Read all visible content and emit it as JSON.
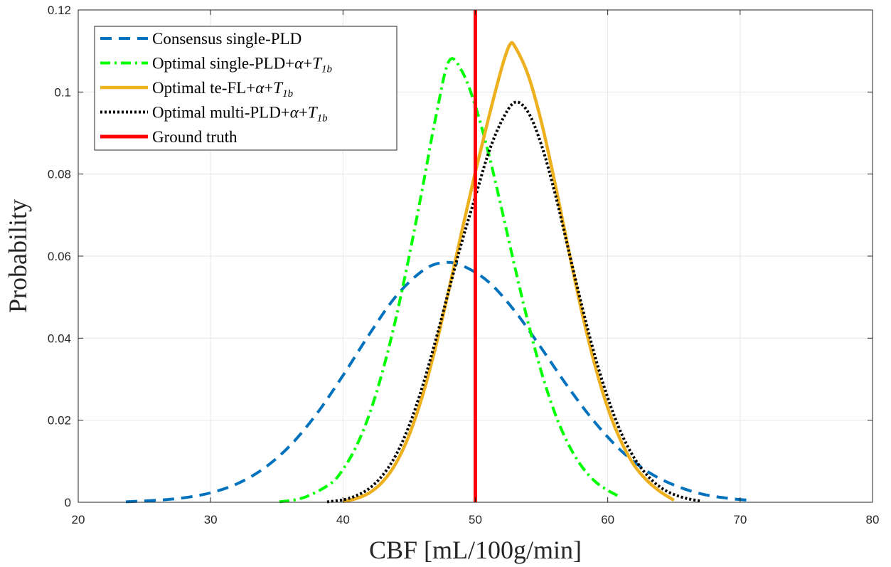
{
  "chart_data": {
    "type": "line",
    "title": "",
    "xlabel": "CBF [mL/100g/min]",
    "ylabel": "Probability",
    "xlim": [
      20,
      80
    ],
    "ylim": [
      0,
      0.12
    ],
    "xticks": [
      20,
      30,
      40,
      50,
      60,
      70,
      80
    ],
    "xtick_labels": [
      "20",
      "30",
      "40",
      "50",
      "60",
      "70",
      "80"
    ],
    "yticks": [
      0,
      0.02,
      0.04,
      0.06,
      0.08,
      0.1,
      0.12
    ],
    "ytick_labels": [
      "0",
      "0.02",
      "0.04",
      "0.06",
      "0.08",
      "0.1",
      "0.12"
    ],
    "grid": true,
    "legend_position": "top-left",
    "series": [
      {
        "name": "Consensus single-PLD",
        "legend_parts": [
          "Consensus single-PLD"
        ],
        "color": "#0072BD",
        "style": "dashed",
        "x": [
          23.6,
          26,
          28,
          30,
          32,
          34,
          36,
          38,
          40,
          42,
          44,
          46,
          47.5,
          49,
          51,
          53,
          55,
          57,
          59,
          61,
          63,
          65,
          67,
          69,
          71
        ],
        "y": [
          0.0001,
          0.0005,
          0.0011,
          0.0023,
          0.0045,
          0.0082,
          0.0138,
          0.0215,
          0.0309,
          0.041,
          0.0502,
          0.0564,
          0.0584,
          0.0577,
          0.0537,
          0.0465,
          0.0375,
          0.0281,
          0.0196,
          0.0126,
          0.0075,
          0.0042,
          0.0021,
          0.001,
          0.0004
        ]
      },
      {
        "name": "Optimal single-PLD+α+T1b",
        "legend_parts": [
          "Optimal single-PLD+",
          "α",
          "+",
          "T",
          "1b"
        ],
        "color": "#00FF00",
        "style": "dashdot",
        "x": [
          35.2,
          37,
          39,
          40,
          41,
          42,
          43,
          44,
          45,
          46,
          47,
          48,
          49,
          50,
          51,
          52,
          53,
          54,
          55,
          56,
          57,
          58,
          59,
          60,
          61
        ],
        "y": [
          0.0001,
          0.0011,
          0.0044,
          0.008,
          0.0136,
          0.0215,
          0.032,
          0.0449,
          0.06,
          0.0765,
          0.0937,
          0.1075,
          0.105,
          0.0966,
          0.085,
          0.0713,
          0.0571,
          0.0436,
          0.0316,
          0.0218,
          0.0143,
          0.0089,
          0.0052,
          0.0029,
          0.0012
        ]
      },
      {
        "name": "Optimal te-FL+α+T1b",
        "legend_parts": [
          "Optimal te-FL+",
          "α",
          "+",
          "T",
          "1b"
        ],
        "color": "#EDB120",
        "style": "solid",
        "x": [
          40,
          41,
          42,
          43,
          44,
          45,
          46,
          47,
          48,
          49,
          50,
          51,
          52,
          52.6,
          53,
          54,
          55,
          56,
          57,
          58,
          59,
          60,
          61,
          62,
          63,
          64,
          65
        ],
        "y": [
          0.0002,
          0.0009,
          0.0023,
          0.005,
          0.0095,
          0.0164,
          0.0259,
          0.0379,
          0.0518,
          0.0664,
          0.0805,
          0.0937,
          0.106,
          0.1115,
          0.111,
          0.104,
          0.0925,
          0.078,
          0.0622,
          0.047,
          0.0338,
          0.023,
          0.0149,
          0.009,
          0.0052,
          0.0025,
          0.0005
        ]
      },
      {
        "name": "Optimal multi-PLD+α+T1b",
        "legend_parts": [
          "Optimal multi-PLD+",
          "α",
          "+",
          "T",
          "1b"
        ],
        "color": "#000000",
        "style": "dotted",
        "x": [
          38.8,
          40,
          41,
          42,
          43,
          44,
          45,
          46,
          47,
          48,
          49,
          50,
          51,
          52,
          53,
          54,
          55,
          56,
          57,
          58,
          59,
          60,
          61,
          62,
          63,
          64,
          65,
          66,
          67
        ],
        "y": [
          0.0001,
          0.0006,
          0.0016,
          0.0034,
          0.0066,
          0.0115,
          0.0187,
          0.0282,
          0.0395,
          0.0517,
          0.0637,
          0.0745,
          0.0852,
          0.093,
          0.0975,
          0.095,
          0.087,
          0.0755,
          0.062,
          0.0485,
          0.036,
          0.0255,
          0.017,
          0.0108,
          0.0065,
          0.0036,
          0.0019,
          0.0009,
          0.0003
        ]
      },
      {
        "name": "Ground truth",
        "legend_parts": [
          "Ground truth"
        ],
        "color": "#FF0000",
        "style": "solid",
        "x": [
          50,
          50
        ],
        "y": [
          0,
          0.12
        ]
      }
    ]
  }
}
